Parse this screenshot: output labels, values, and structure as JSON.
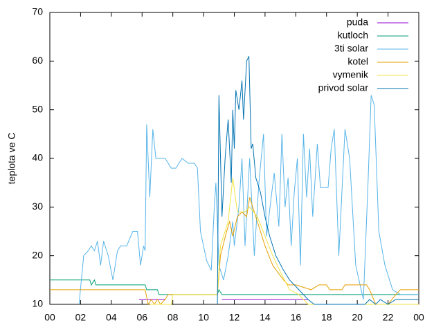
{
  "chart_data": {
    "type": "line",
    "ylabel": "teplota ve C",
    "xlim": [
      0,
      24
    ],
    "xticks": [
      {
        "value": 0,
        "label": "00"
      },
      {
        "value": 2,
        "label": "02"
      },
      {
        "value": 4,
        "label": "04"
      },
      {
        "value": 6,
        "label": "06"
      },
      {
        "value": 8,
        "label": "08"
      },
      10,
      12,
      14,
      16,
      18,
      20,
      22,
      {
        "value": 24,
        "label": "00"
      }
    ],
    "ylim": [
      10,
      70
    ],
    "yticks": [
      10,
      20,
      30,
      40,
      50,
      60,
      70
    ],
    "legend": "top-right",
    "series": [
      {
        "name": "puda",
        "color": "#9400d3",
        "x": [
          5.8,
          7.5,
          9.0,
          11.2,
          16.8
        ],
        "values": [
          11,
          11,
          null,
          11,
          11
        ]
      },
      {
        "name": "kutloch",
        "color": "#009e73",
        "x": [
          0,
          2.6,
          2.7,
          2.9,
          3.0,
          6.2,
          6.3,
          7.0,
          7.1,
          10.9,
          11.0,
          11.2,
          24
        ],
        "values": [
          15,
          15,
          14,
          15,
          14,
          14,
          13,
          13,
          12,
          12,
          13,
          12,
          12
        ]
      },
      {
        "name": "3ti solar",
        "color": "#56b4e9",
        "x": [
          1.9,
          2.2,
          2.5,
          2.7,
          2.9,
          3.1,
          3.3,
          3.5,
          3.8,
          4.1,
          4.4,
          4.6,
          5.0,
          5.4,
          5.7,
          5.9,
          6.1,
          6.2,
          6.3,
          6.5,
          6.7,
          6.9,
          7.5,
          7.9,
          8.2,
          8.6,
          9.0,
          9.4,
          9.6,
          9.8,
          10.2,
          10.5,
          10.7,
          10.8,
          11.0,
          11.3,
          11.6,
          11.9,
          12.0,
          12.3,
          12.5,
          12.7,
          13.0,
          13.3,
          13.6,
          13.9,
          14.1,
          14.4,
          14.6,
          14.9,
          15.1,
          15.3,
          15.5,
          15.7,
          15.9,
          16.1,
          16.3,
          16.5,
          16.7,
          16.9,
          17.1,
          17.4,
          17.6,
          18.1,
          18.3,
          18.5,
          18.8,
          19.2,
          19.5,
          19.9,
          20.4,
          20.7,
          20.9,
          21.1,
          21.4,
          21.8,
          22.3,
          22.8,
          24
        ],
        "values": [
          10,
          20,
          21,
          22,
          21,
          23,
          18,
          23,
          20,
          15,
          21,
          22,
          22,
          25,
          25,
          18,
          22,
          21,
          47,
          32,
          46,
          40,
          40,
          38,
          38,
          40,
          39,
          39,
          38,
          25,
          19,
          17,
          30,
          35,
          18,
          15,
          20,
          27,
          22,
          30,
          40,
          22,
          40,
          20,
          35,
          45,
          24,
          32,
          37,
          26,
          45,
          30,
          36,
          22,
          33,
          40,
          18,
          45,
          32,
          42,
          28,
          43,
          34,
          34,
          42,
          46,
          20,
          46,
          40,
          18,
          11,
          35,
          53,
          51,
          25,
          18,
          13,
          12,
          12
        ]
      },
      {
        "name": "kotel",
        "color": "#e69f00",
        "x": [
          0,
          6.2,
          6.4,
          6.6,
          6.8,
          7.0,
          7.2,
          7.5,
          7.7,
          10.9,
          11.1,
          11.5,
          11.7,
          11.9,
          12.2,
          12.5,
          12.8,
          13.0,
          13.5,
          14.0,
          14.5,
          15.2,
          15.5,
          16.0,
          17.0,
          17.5,
          18.0,
          18.2,
          19.0,
          19.2,
          20.6,
          20.8,
          21.2,
          22.0,
          22.5,
          22.8,
          24
        ],
        "values": [
          13,
          13,
          10,
          11,
          10,
          11,
          10,
          11,
          12,
          12,
          20,
          25,
          27,
          24,
          28,
          29,
          28,
          32,
          27,
          22,
          18,
          15,
          14,
          14,
          13,
          14,
          14,
          13,
          13,
          14,
          14,
          13,
          10,
          10,
          12,
          13,
          13
        ]
      },
      {
        "name": "vymenik",
        "color": "#f0e442",
        "x": [
          6.5,
          7.9,
          8.0,
          10.9,
          11.1,
          11.6,
          11.9,
          12.2,
          12.7,
          13.0,
          13.5,
          14.0,
          14.5,
          15.1,
          15.6,
          16.2,
          16.8,
          24
        ],
        "values": [
          10,
          10,
          12,
          12,
          22,
          27,
          36,
          29,
          29,
          30,
          28,
          24,
          20,
          16,
          13,
          12,
          10,
          10
        ]
      },
      {
        "name": "privod solar",
        "color": "#0072b2",
        "x": [
          10.9,
          11.0,
          11.2,
          11.4,
          11.6,
          11.8,
          11.9,
          12.0,
          12.1,
          12.3,
          12.5,
          12.6,
          12.8,
          12.95,
          13.1,
          13.2,
          13.4,
          13.7,
          14.0,
          14.3,
          14.7,
          15.2,
          15.6,
          16.2,
          16.8,
          17.2,
          20.5,
          20.8,
          21.2,
          21.5,
          22.0,
          22.5,
          24
        ],
        "values": [
          10,
          53,
          28,
          40,
          48,
          35,
          50,
          42,
          54,
          50,
          56,
          48,
          60,
          61,
          42,
          43,
          36,
          33,
          28,
          24,
          20,
          17,
          15,
          13,
          11,
          10,
          10,
          11,
          10,
          11,
          10,
          11,
          11
        ]
      }
    ]
  }
}
